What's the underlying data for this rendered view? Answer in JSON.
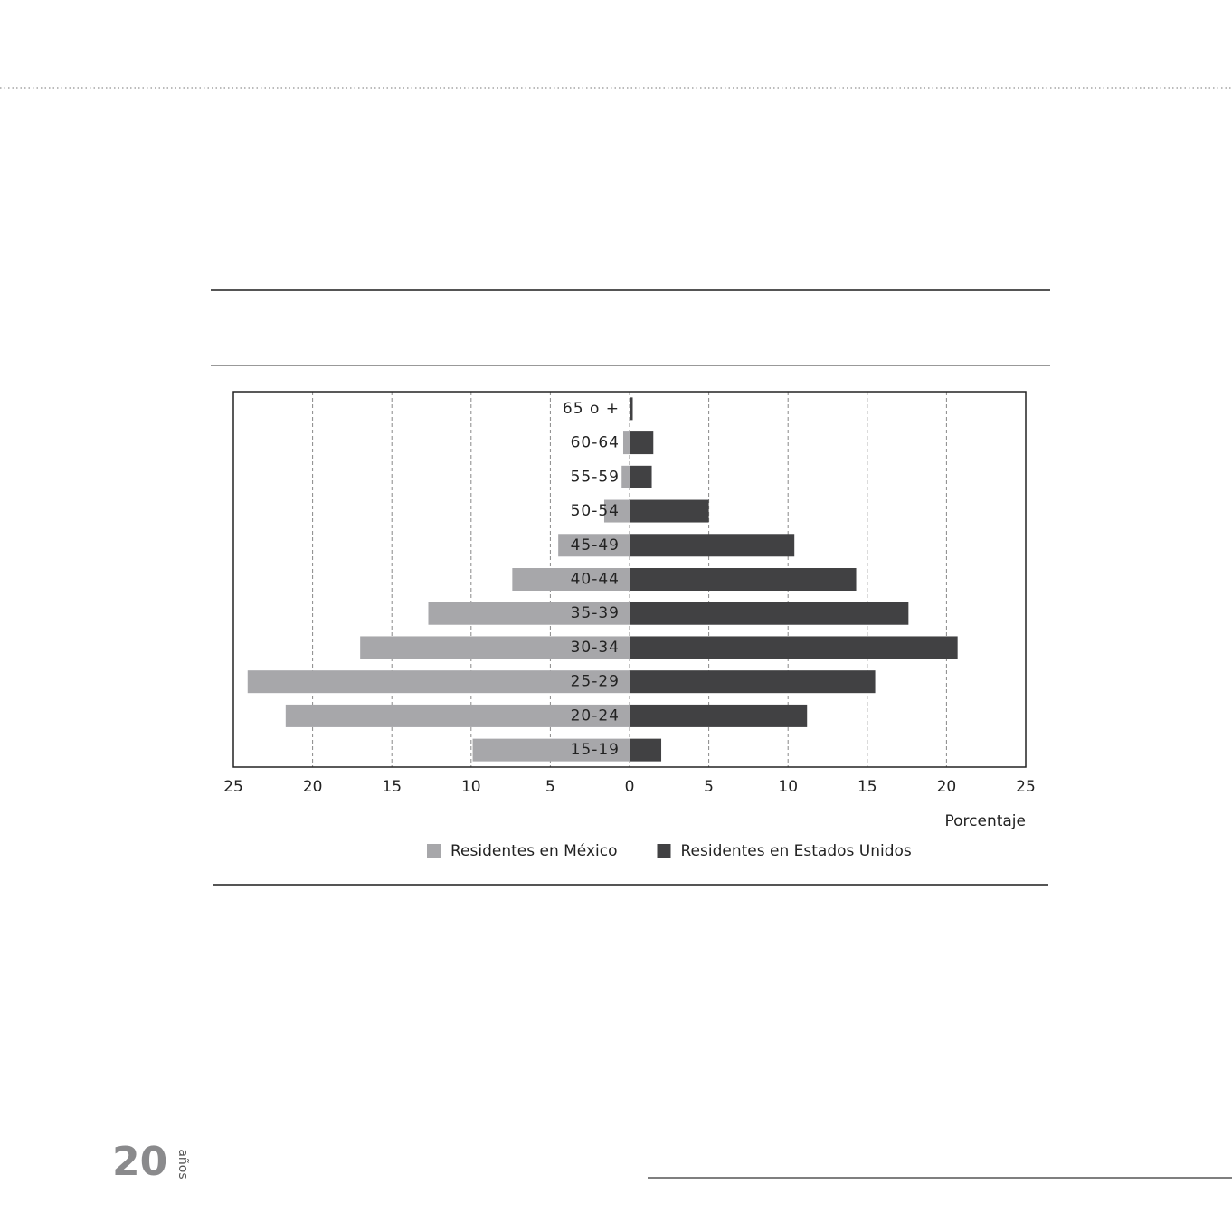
{
  "chart_data": {
    "type": "pyramid",
    "categories": [
      "65 o +",
      "60-64",
      "55-59",
      "50-54",
      "45-49",
      "40-44",
      "35-39",
      "30-34",
      "25-29",
      "20-24",
      "15-19"
    ],
    "series": [
      {
        "name": "Residentes en México",
        "color": "#a7a7aa",
        "values": [
          0,
          -0.4,
          -0.5,
          -1.6,
          -4.5,
          -7.4,
          -12.7,
          -17.0,
          -24.1,
          -21.7,
          -9.9
        ]
      },
      {
        "name": "Residentes en Estados Unidos",
        "color": "#414143",
        "values": [
          0.2,
          1.5,
          1.4,
          5.0,
          10.4,
          14.3,
          17.6,
          20.7,
          15.5,
          11.2,
          2.0
        ]
      }
    ],
    "xlabel": "Porcentaje",
    "xlim": [
      -25,
      25
    ],
    "xticks": [
      {
        "value": -25,
        "label": "25"
      },
      {
        "value": -20,
        "label": "20"
      },
      {
        "value": -15,
        "label": "15"
      },
      {
        "value": -10,
        "label": "10"
      },
      {
        "value": -5,
        "label": "5"
      },
      0,
      5,
      10,
      15,
      20,
      25
    ],
    "grid": true
  },
  "footer": {
    "logo_number": "20",
    "logo_text": "años"
  }
}
